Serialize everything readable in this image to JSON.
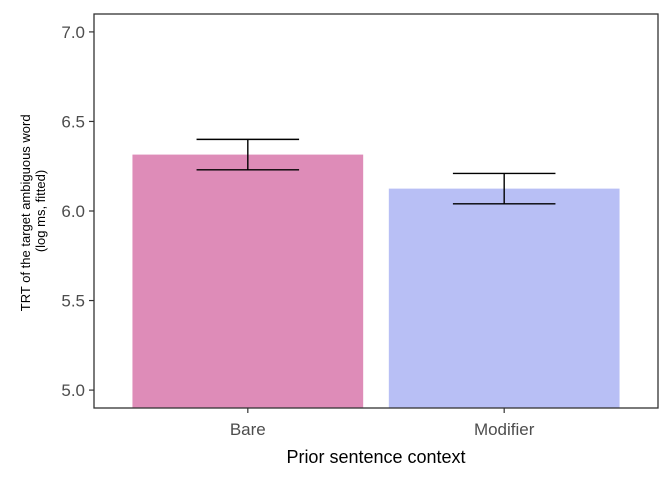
{
  "chart_data": {
    "type": "bar",
    "categories": [
      "Bare",
      "Modifier"
    ],
    "values": [
      6.315,
      6.125
    ],
    "error_low": [
      6.23,
      6.04
    ],
    "error_high": [
      6.4,
      6.21
    ],
    "bar_colors": [
      "#de8cb8",
      "#b8bff5"
    ],
    "xlabel": "Prior sentence context",
    "ylabel_lines": [
      "TRT of the target ambiguous word",
      "(log ms, fitted)"
    ],
    "ylim": [
      4.9,
      7.1
    ],
    "yticks": [
      "5.0",
      "5.5",
      "6.0",
      "6.5",
      "7.0"
    ],
    "grid": false,
    "legend": "none"
  }
}
